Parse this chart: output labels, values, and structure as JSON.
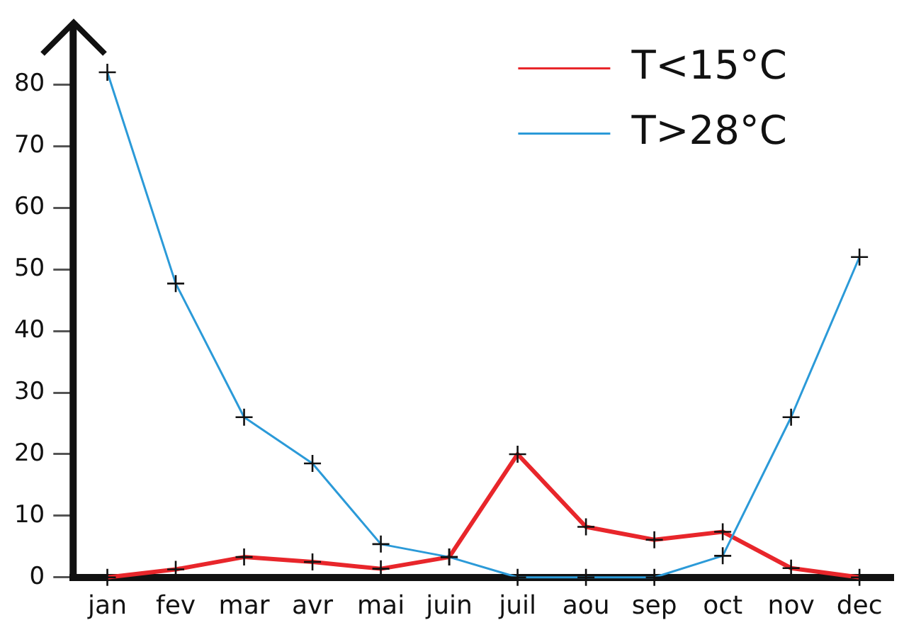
{
  "chart_data": {
    "type": "line",
    "categories": [
      "jan",
      "fev",
      "mar",
      "avr",
      "mai",
      "juin",
      "juil",
      "aou",
      "sep",
      "oct",
      "nov",
      "dec"
    ],
    "series": [
      {
        "name": "T<15°C",
        "color": "#e8262b",
        "values": [
          0,
          1.3,
          3.3,
          2.5,
          1.4,
          3.3,
          20,
          8.2,
          6.1,
          7.4,
          1.5,
          0
        ]
      },
      {
        "name": "T>28°C",
        "color": "#2b9ad8",
        "values": [
          82,
          47.7,
          26,
          18.5,
          5.4,
          3.3,
          0,
          0,
          0,
          3.5,
          26,
          52
        ]
      }
    ],
    "ylim": [
      0,
      90
    ],
    "yticks": [
      0,
      10,
      20,
      30,
      40,
      50,
      60,
      70,
      80
    ],
    "grid": false,
    "legend": "top right",
    "marker": "cross",
    "line_style": "solid"
  }
}
